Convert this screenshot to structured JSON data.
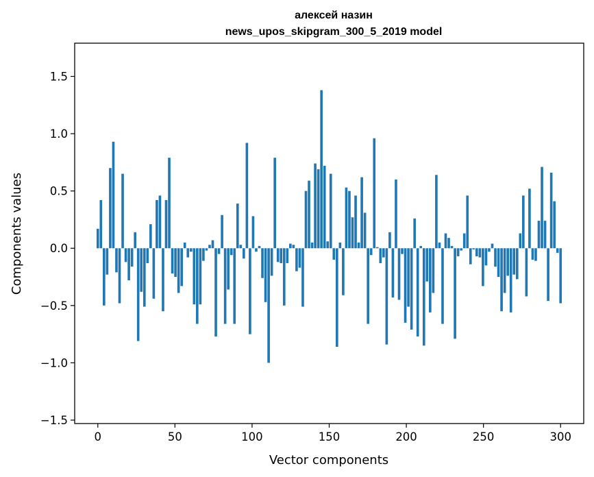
{
  "chart_data": {
    "type": "bar",
    "title": "алексей назин",
    "subtitle": "news_upos_skipgram_300_5_2019 model",
    "xlabel": "Vector components",
    "ylabel": "Components values",
    "xlim": [
      -15,
      315
    ],
    "ylim": [
      -1.53,
      1.79
    ],
    "xticks": [
      0,
      50,
      100,
      150,
      200,
      250,
      300
    ],
    "yticks": [
      -1.5,
      -1.0,
      -0.5,
      0.0,
      0.5,
      1.0,
      1.5
    ],
    "ytick_labels": [
      "−1.5",
      "−1.0",
      "−0.5",
      "0.0",
      "0.5",
      "1.0",
      "1.5"
    ],
    "bar_color": "#1f77b4",
    "grid": false,
    "legend": "none",
    "values": [
      0.17,
      0.42,
      -0.5,
      -0.23,
      0.7,
      0.93,
      -0.21,
      -0.48,
      0.65,
      -0.12,
      -0.28,
      -0.16,
      0.14,
      -0.81,
      -0.38,
      -0.51,
      -0.13,
      0.21,
      -0.44,
      0.42,
      0.46,
      -0.55,
      0.42,
      0.79,
      -0.22,
      -0.25,
      -0.39,
      -0.33,
      0.05,
      -0.08,
      -0.03,
      -0.49,
      -0.66,
      -0.49,
      -0.11,
      -0.02,
      0.03,
      0.07,
      -0.77,
      -0.05,
      0.29,
      -0.66,
      -0.36,
      -0.06,
      -0.66,
      0.39,
      0.03,
      -0.09,
      0.92,
      -0.75,
      0.28,
      -0.03,
      0.02,
      -0.26,
      -0.47,
      -1.0,
      -0.24,
      0.79,
      -0.12,
      -0.13,
      -0.5,
      -0.13,
      0.04,
      0.03,
      -0.2,
      -0.17,
      -0.51,
      0.5,
      0.59,
      0.05,
      0.74,
      0.69,
      1.38,
      0.72,
      0.06,
      0.65,
      -0.1,
      -0.86,
      0.05,
      -0.41,
      0.53,
      0.5,
      0.27,
      0.46,
      0.05,
      0.62,
      0.31,
      -0.66,
      -0.06,
      0.96,
      0.01,
      -0.13,
      -0.08,
      -0.84,
      0.14,
      -0.43,
      0.6,
      -0.45,
      -0.05,
      -0.65,
      -0.51,
      -0.71,
      0.26,
      -0.77,
      0.02,
      -0.85,
      -0.29,
      -0.56,
      -0.39,
      0.64,
      0.05,
      -0.66,
      0.13,
      0.09,
      0.02,
      -0.79,
      -0.07,
      -0.02,
      0.13,
      0.46,
      -0.14,
      -0.01,
      -0.07,
      -0.08,
      -0.33,
      -0.15,
      -0.03,
      0.04,
      -0.16,
      -0.25,
      -0.55,
      -0.39,
      -0.24,
      -0.56,
      -0.23,
      -0.27,
      0.13,
      0.46,
      -0.42,
      0.52,
      -0.1,
      -0.11,
      0.24,
      0.71,
      0.24,
      -0.46,
      0.66,
      0.41,
      -0.04,
      -0.48
    ]
  },
  "colors": {
    "bars": "#1f77b4",
    "axes": "#000000",
    "background": "#ffffff"
  }
}
